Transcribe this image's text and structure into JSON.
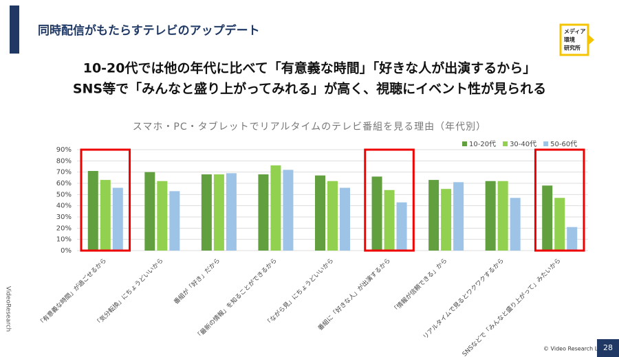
{
  "header": {
    "title": "同時配信がもたらすテレビのアップデート",
    "logo": [
      "メディア",
      "環境",
      "研究所"
    ]
  },
  "headline": [
    "10-20代では他の年代に比べて「有意義な時間」「好きな人が出演するから」",
    "SNS等で「みんなと盛り上がってみれる」が高く、視聴にイベント性が見られる"
  ],
  "chart_data": {
    "type": "bar",
    "title": "スマホ・PC・タブレットでリアルタイムのテレビ番組を見る理由（年代別）",
    "categories": [
      "「有意義な時間」が過ごせるから",
      "「気分転換」にちょうどいいから",
      "番組が「好き」だから",
      "「最新の情報」を知ることができるから",
      "「ながら見」にちょうどいいから",
      "番組に「好きな人」が出演するから",
      "「情報が信頼できる」から",
      "リアルタイムで見るとワクワクするから",
      "SNSなどで「みんなと盛り上がって」みたいから"
    ],
    "series": [
      {
        "name": "10-20代",
        "color": "#62a03f",
        "values": [
          71,
          70,
          68,
          68,
          67,
          66,
          63,
          62,
          58
        ]
      },
      {
        "name": "30-40代",
        "color": "#92d050",
        "values": [
          63,
          62,
          68,
          76,
          62,
          54,
          55,
          62,
          47
        ]
      },
      {
        "name": "50-60代",
        "color": "#9dc3e6",
        "values": [
          56,
          53,
          69,
          72,
          56,
          43,
          61,
          47,
          21
        ]
      }
    ],
    "ylim": [
      0,
      90
    ],
    "yticks": [
      {
        "value": 0,
        "label": "0%"
      },
      {
        "value": 10,
        "label": "10%"
      },
      {
        "value": 20,
        "label": "20%"
      },
      {
        "value": 30,
        "label": "30%"
      },
      {
        "value": 40,
        "label": "40%"
      },
      {
        "value": 50,
        "label": "50%"
      },
      {
        "value": 60,
        "label": "60%"
      },
      {
        "value": 70,
        "label": "70%"
      },
      {
        "value": 80,
        "label": "80%"
      },
      {
        "value": 90,
        "label": "90%"
      }
    ],
    "grid": true,
    "legend": "top-right",
    "highlight": [
      0,
      5,
      8
    ]
  },
  "footer": {
    "copyright": "© Video Research Ltd.",
    "page_number": "28",
    "side_logo": "VideoResearch"
  }
}
